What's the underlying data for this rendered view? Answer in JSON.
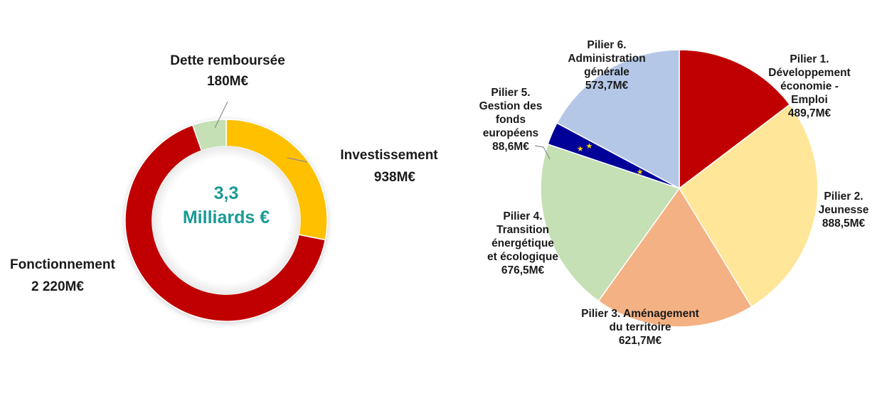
{
  "chart_data": [
    {
      "type": "pie",
      "variant": "donut",
      "title": "",
      "center_label": {
        "line1": "3,3",
        "line2": "Milliards €"
      },
      "categories": [
        "Investissement",
        "Fonctionnement",
        "Dette remboursée"
      ],
      "values": [
        938,
        2220,
        180
      ],
      "unit": "M€",
      "value_labels": [
        "938M€",
        "2 220M€",
        "180M€"
      ],
      "colors": [
        "#FFC000",
        "#C00000",
        "#C5E0B4"
      ],
      "legend": "none"
    },
    {
      "type": "pie",
      "title": "",
      "categories": [
        "Pilier 1. Développement économie - Emploi",
        "Pilier 2. Jeunesse",
        "Pilier 3. Aménagement du territoire",
        "Pilier 4. Transition énergétique et écologique",
        "Pilier 5. Gestion des fonds européens",
        "Pilier 6. Administration générale"
      ],
      "values": [
        489.7,
        888.5,
        621.7,
        676.5,
        88.6,
        573.7
      ],
      "unit": "M€",
      "value_labels": [
        "489,7M€",
        "888,5M€",
        "621,7M€",
        "676,5M€",
        "88,6M€",
        "573,7M€"
      ],
      "colors": [
        "#C00000",
        "#FFE699",
        "#F4B183",
        "#C5E0B4",
        "#000099",
        "#B4C7E7"
      ],
      "legend": "none"
    }
  ],
  "donut": {
    "center": {
      "line1": "3,3",
      "line2": "Milliards €"
    },
    "labels": {
      "dette": {
        "name": "Dette remboursée",
        "value": "180M€"
      },
      "investissement": {
        "name": "Investissement",
        "value": "938M€"
      },
      "fonctionnement": {
        "name": "Fonctionnement",
        "value": "2 220M€"
      }
    }
  },
  "pie": {
    "labels": {
      "p1": {
        "l1": "Pilier 1.",
        "l2": "Développement",
        "l3": "économie -",
        "l4": "Emploi",
        "value": "489,7M€"
      },
      "p2": {
        "l1": "Pilier 2.",
        "l2": "Jeunesse",
        "value": "888,5M€"
      },
      "p3": {
        "l1": "Pilier 3. Aménagement",
        "l2": "du territoire",
        "value": "621,7M€"
      },
      "p4": {
        "l1": "Pilier 4.",
        "l2": "Transition",
        "l3": "énergétique",
        "l4": "et écologique",
        "value": "676,5M€"
      },
      "p5": {
        "l1": "Pilier 5.",
        "l2": "Gestion des",
        "l3": "fonds",
        "l4": "européens",
        "value": "88,6M€"
      },
      "p6": {
        "l1": "Pilier 6.",
        "l2": "Administration",
        "l3": "générale",
        "value": "573,7M€"
      }
    }
  }
}
